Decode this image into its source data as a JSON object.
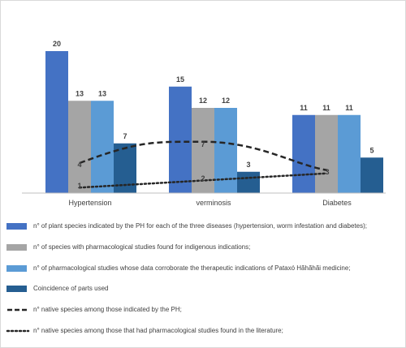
{
  "chart_data": {
    "type": "bar",
    "categories": [
      "Hypertension",
      "verminosis",
      "Diabetes"
    ],
    "series": [
      {
        "name": "n° of plant species indicated by the PH for each of the three diseases (hypertension, worm infestation and diabetes);",
        "values": [
          20,
          15,
          11
        ],
        "color": "#4472C4"
      },
      {
        "name": "n° of species with pharmacological studies found for indigenous indications;",
        "values": [
          13,
          12,
          11
        ],
        "color": "#A5A5A5"
      },
      {
        "name": "n° of pharmacological studies whose data corroborate the therapeutic indications of Pataxó Hãhãhãi medicine;",
        "values": [
          13,
          12,
          11
        ],
        "color": "#5B9BD5"
      },
      {
        "name": "Coincidence of parts used",
        "values": [
          7,
          3,
          5
        ],
        "color": "#255E91"
      }
    ],
    "lines": [
      {
        "name": "n° native species among those indicated by the PH;",
        "values": [
          4,
          7,
          3
        ],
        "style": "dashed",
        "color": "#262626"
      },
      {
        "name": "n° native species among those that had pharmacological studies found in the literature;",
        "values": [
          1,
          2,
          3
        ],
        "style": "dotted",
        "color": "#262626"
      }
    ],
    "ylim": [
      0,
      20
    ],
    "grid": false,
    "legend_position": "bottom"
  }
}
